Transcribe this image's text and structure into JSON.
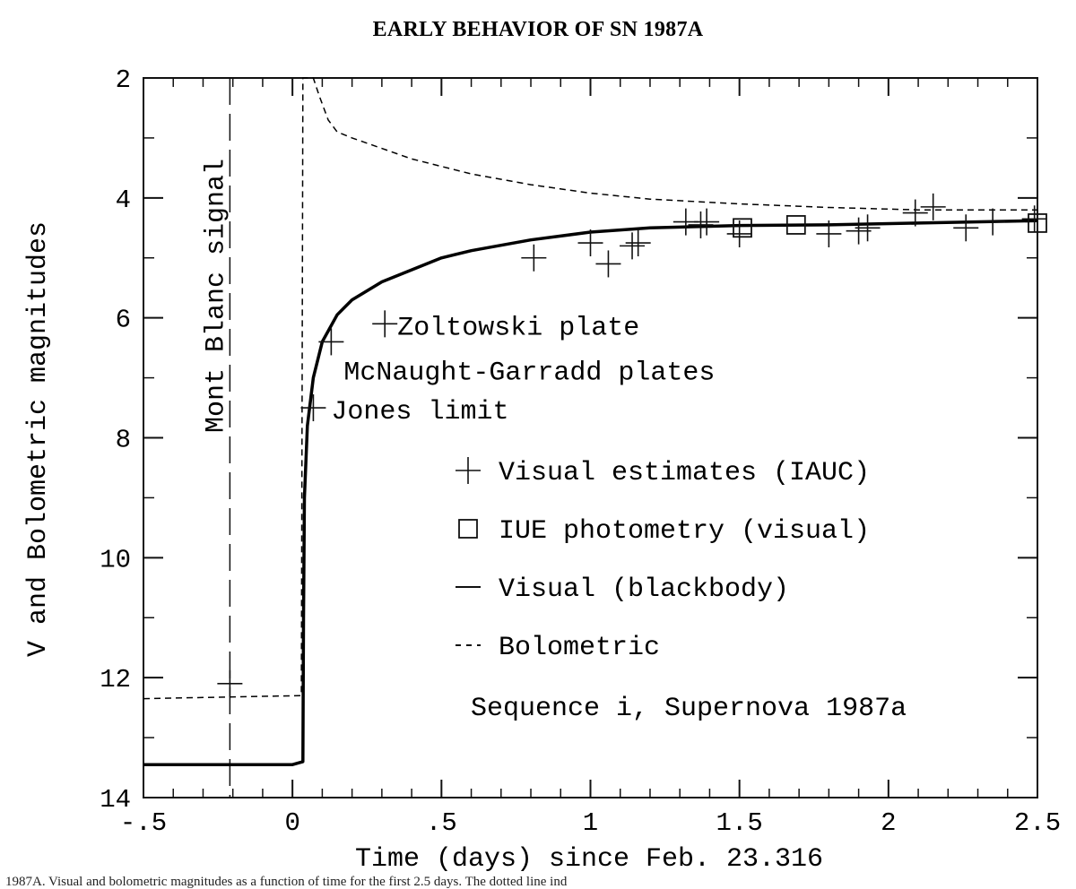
{
  "chart_data": {
    "type": "scatter",
    "title": "EARLY BEHAVIOR OF SN 1987A",
    "xlabel": "Time (days) since Feb. 23.316",
    "ylabel": "V and Bolometric magnitudes",
    "xlim": [
      -0.5,
      2.5
    ],
    "ylim": [
      2,
      14
    ],
    "y_inverted": true,
    "grid": false,
    "x_ticks": [
      {
        "value": -0.5,
        "label": "-.5"
      },
      {
        "value": 0,
        "label": "0"
      },
      {
        "value": 0.5,
        "label": ".5"
      },
      {
        "value": 1,
        "label": "1"
      },
      {
        "value": 1.5,
        "label": "1.5"
      },
      {
        "value": 2,
        "label": "2"
      },
      {
        "value": 2.5,
        "label": "2.5"
      }
    ],
    "y_ticks": [
      {
        "value": 2,
        "label": "2"
      },
      {
        "value": 4,
        "label": "4"
      },
      {
        "value": 6,
        "label": "6"
      },
      {
        "value": 8,
        "label": "8"
      },
      {
        "value": 10,
        "label": "10"
      },
      {
        "value": 12,
        "label": "12"
      },
      {
        "value": 14,
        "label": "14"
      }
    ],
    "series": [
      {
        "name": "Visual estimates (IAUC)",
        "marker": "plus",
        "points": [
          {
            "x": -0.21,
            "y": 12.1
          },
          {
            "x": 0.07,
            "y": 7.5
          },
          {
            "x": 0.13,
            "y": 6.4
          },
          {
            "x": 0.31,
            "y": 6.1
          },
          {
            "x": 0.81,
            "y": 5.0
          },
          {
            "x": 1.0,
            "y": 4.75
          },
          {
            "x": 1.06,
            "y": 5.1
          },
          {
            "x": 1.14,
            "y": 4.8
          },
          {
            "x": 1.16,
            "y": 4.75
          },
          {
            "x": 1.32,
            "y": 4.4
          },
          {
            "x": 1.37,
            "y": 4.45
          },
          {
            "x": 1.39,
            "y": 4.4
          },
          {
            "x": 1.5,
            "y": 4.6
          },
          {
            "x": 1.8,
            "y": 4.6
          },
          {
            "x": 1.9,
            "y": 4.55
          },
          {
            "x": 1.93,
            "y": 4.5
          },
          {
            "x": 2.09,
            "y": 4.25
          },
          {
            "x": 2.15,
            "y": 4.15
          },
          {
            "x": 2.26,
            "y": 4.5
          },
          {
            "x": 2.35,
            "y": 4.4
          },
          {
            "x": 2.49,
            "y": 4.35
          }
        ]
      },
      {
        "name": "IUE photometry (visual)",
        "marker": "square",
        "points": [
          {
            "x": 1.51,
            "y": 4.5
          },
          {
            "x": 1.69,
            "y": 4.45
          },
          {
            "x": 2.5,
            "y": 4.42
          }
        ]
      },
      {
        "name": "Visual (blackbody)",
        "line": "solid",
        "points": [
          {
            "x": -0.5,
            "y": 13.45
          },
          {
            "x": 0.0,
            "y": 13.45
          },
          {
            "x": 0.035,
            "y": 13.4
          },
          {
            "x": 0.037,
            "y": 11.0
          },
          {
            "x": 0.04,
            "y": 9.0
          },
          {
            "x": 0.05,
            "y": 7.8
          },
          {
            "x": 0.07,
            "y": 7.0
          },
          {
            "x": 0.1,
            "y": 6.4
          },
          {
            "x": 0.15,
            "y": 5.95
          },
          {
            "x": 0.2,
            "y": 5.7
          },
          {
            "x": 0.3,
            "y": 5.4
          },
          {
            "x": 0.4,
            "y": 5.2
          },
          {
            "x": 0.5,
            "y": 5.0
          },
          {
            "x": 0.6,
            "y": 4.88
          },
          {
            "x": 0.8,
            "y": 4.7
          },
          {
            "x": 1.0,
            "y": 4.57
          },
          {
            "x": 1.2,
            "y": 4.5
          },
          {
            "x": 1.5,
            "y": 4.46
          },
          {
            "x": 1.8,
            "y": 4.45
          },
          {
            "x": 2.1,
            "y": 4.42
          },
          {
            "x": 2.5,
            "y": 4.38
          }
        ]
      },
      {
        "name": "Bolometric",
        "line": "dashed",
        "points": [
          {
            "x": -0.5,
            "y": 12.35
          },
          {
            "x": 0.03,
            "y": 12.3
          },
          {
            "x": 0.035,
            "y": 2.0
          },
          {
            "x": 0.07,
            "y": 2.0
          },
          {
            "x": 0.09,
            "y": 2.3
          },
          {
            "x": 0.12,
            "y": 2.7
          },
          {
            "x": 0.15,
            "y": 2.9
          },
          {
            "x": 0.2,
            "y": 3.0
          },
          {
            "x": 0.4,
            "y": 3.35
          },
          {
            "x": 0.6,
            "y": 3.6
          },
          {
            "x": 0.8,
            "y": 3.78
          },
          {
            "x": 1.0,
            "y": 3.92
          },
          {
            "x": 1.2,
            "y": 4.02
          },
          {
            "x": 1.5,
            "y": 4.1
          },
          {
            "x": 1.8,
            "y": 4.16
          },
          {
            "x": 2.1,
            "y": 4.2
          },
          {
            "x": 2.5,
            "y": 4.2
          }
        ]
      }
    ],
    "reference_line": {
      "x": -0.21,
      "label": "Mont Blanc signal",
      "style": "long-dash"
    },
    "annotations": [
      {
        "text": "Zoltowski plate",
        "x": 0.31,
        "y": 6.1
      },
      {
        "text": "McNaught-Garradd plates",
        "x": 0.13,
        "y": 6.4
      },
      {
        "text": "Jones limit",
        "x": 0.07,
        "y": 7.5
      }
    ],
    "legend": {
      "placement": "lower-center",
      "entries": [
        {
          "symbol": "plus",
          "label": "Visual estimates (IAUC)"
        },
        {
          "symbol": "square",
          "label": "IUE photometry (visual)"
        },
        {
          "symbol": "solid-line",
          "label": "Visual (blackbody)"
        },
        {
          "symbol": "dashed-line",
          "label": "Bolometric"
        }
      ],
      "note": "Sequence i, Supernova 1987a"
    }
  },
  "caption_fragment": "1987A. Visual and bolometric magnitudes as a function of time for the first 2.5 days. The dotted line ind"
}
